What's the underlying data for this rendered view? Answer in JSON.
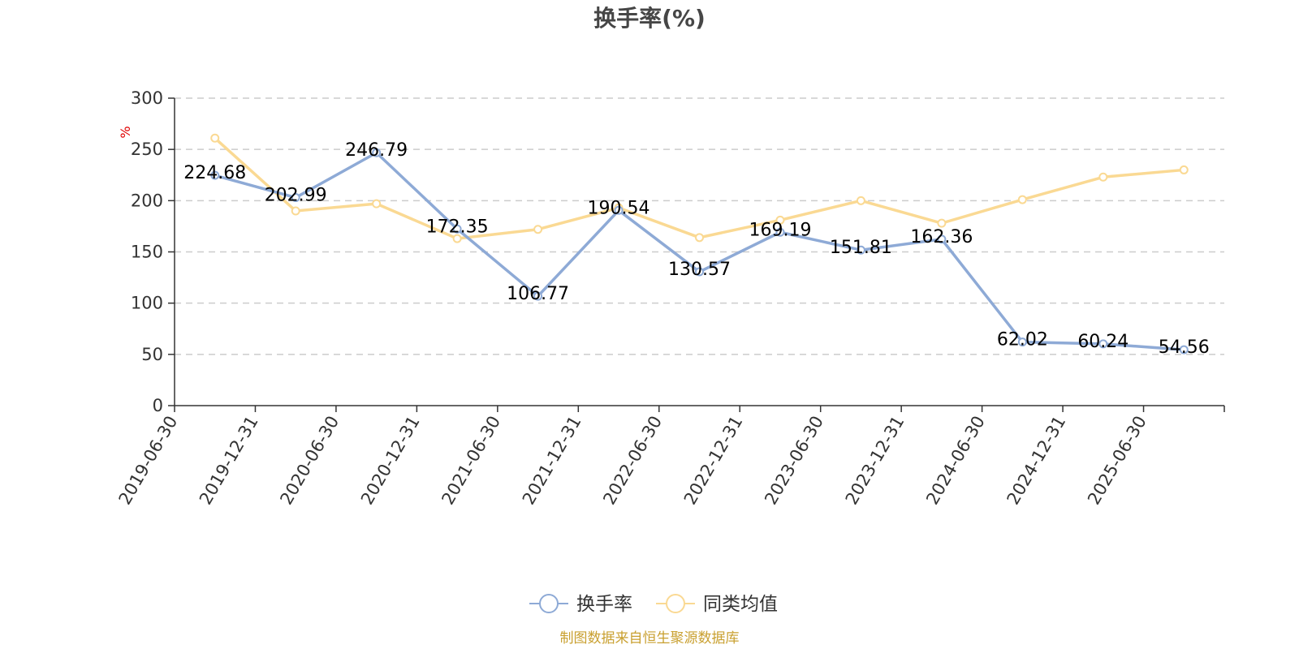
{
  "chart_data": {
    "type": "line",
    "title": "换手率(%)",
    "ylabel": "%",
    "xlabel": "",
    "ylim": [
      0,
      300
    ],
    "yticks": [
      0,
      50,
      100,
      150,
      200,
      250,
      300
    ],
    "categories": [
      "2019-06-30",
      "2019-12-31",
      "2020-06-30",
      "2020-12-31",
      "2021-06-30",
      "2021-12-31",
      "2022-06-30",
      "2022-12-31",
      "2023-06-30",
      "2023-12-31",
      "2024-06-30",
      "2024-12-31",
      "2025-06-30"
    ],
    "series": [
      {
        "name": "换手率",
        "color": "#8eaad6",
        "values": [
          224.68,
          202.99,
          246.79,
          172.35,
          106.77,
          190.54,
          130.57,
          169.19,
          151.81,
          162.36,
          62.02,
          60.24,
          54.56
        ],
        "labels": [
          "224.68",
          "202.99",
          "246.79",
          "172.35",
          "106.77",
          "190.54",
          "130.57",
          "169.19",
          "151.81",
          "162.36",
          "62.02",
          "60.24",
          "54.56"
        ]
      },
      {
        "name": "同类均值",
        "color": "#fad993",
        "values": [
          261,
          190,
          197,
          163,
          172,
          193,
          164,
          181,
          200,
          178,
          201,
          223,
          230
        ]
      }
    ],
    "grid": true,
    "legend_position": "bottom-center"
  },
  "source": "制图数据来自恒生聚源数据库",
  "source_color": "#c9a030"
}
